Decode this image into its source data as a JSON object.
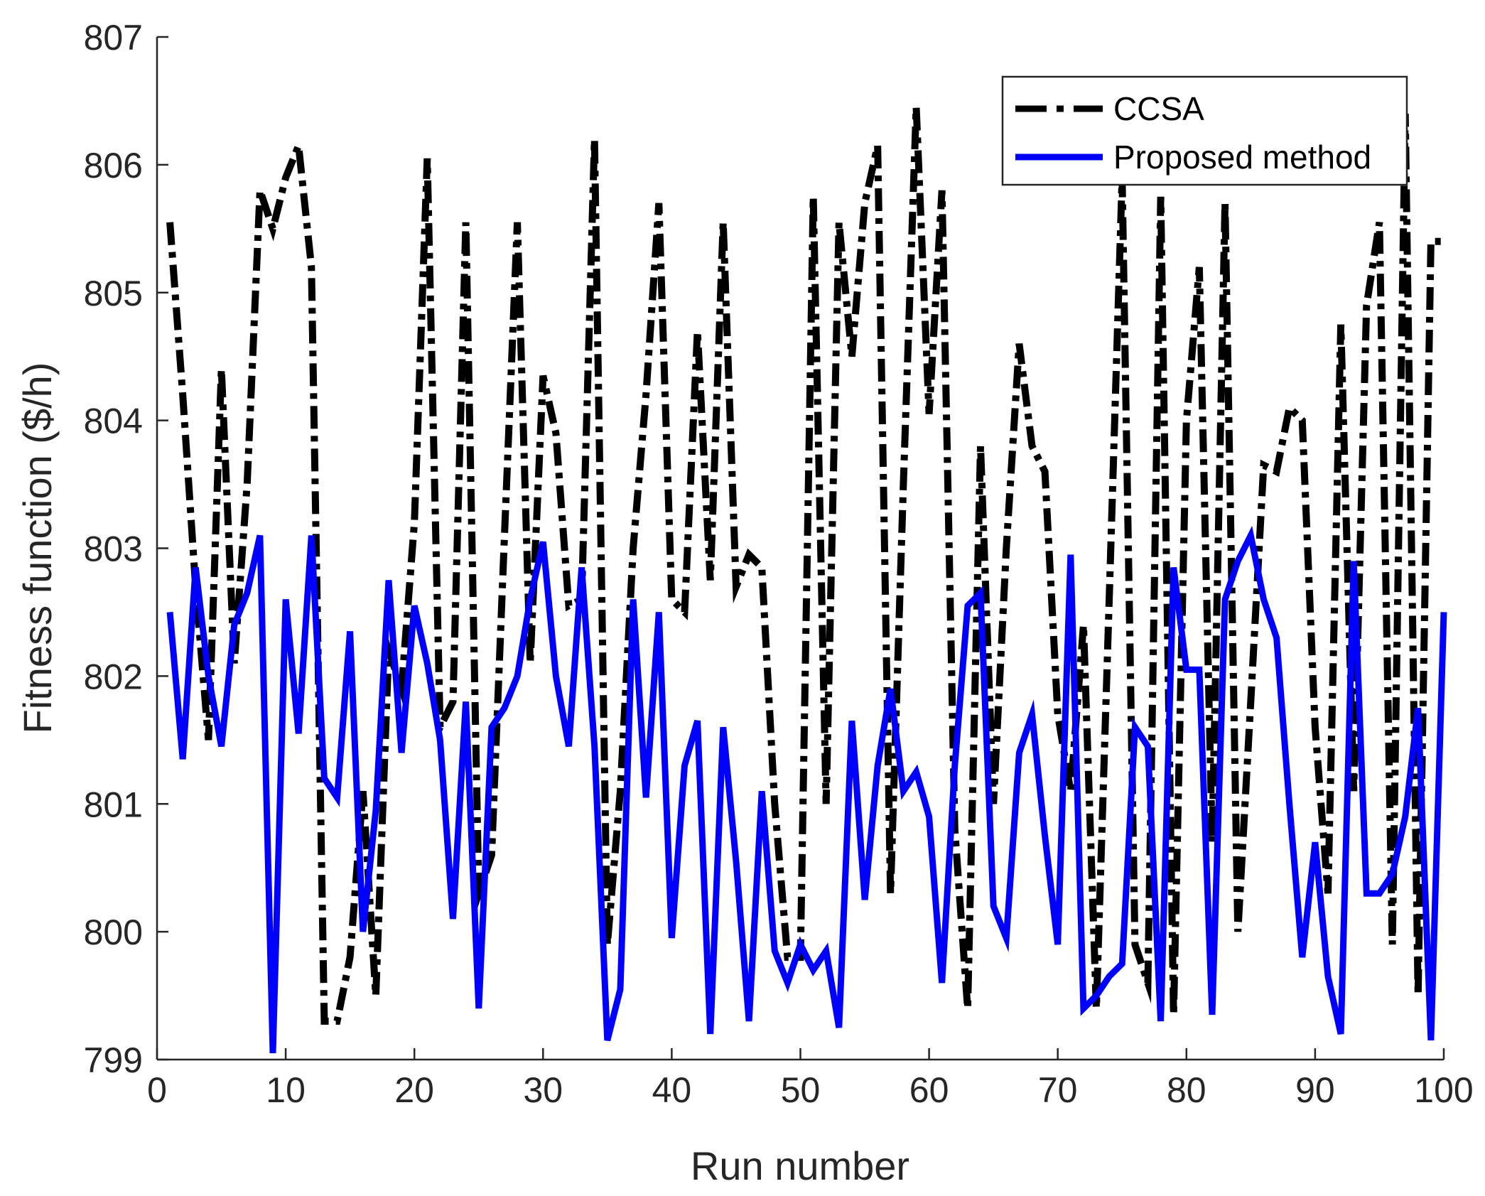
{
  "chart_data": {
    "type": "line",
    "title": "",
    "xlabel": "Run number",
    "ylabel": "Fitness function ($/h)",
    "xlim": [
      0,
      100
    ],
    "ylim": [
      799,
      807
    ],
    "xticks": [
      "0",
      "10",
      "20",
      "30",
      "40",
      "50",
      "60",
      "70",
      "80",
      "90",
      "100"
    ],
    "yticks": [
      "799",
      "800",
      "801",
      "802",
      "803",
      "804",
      "805",
      "806",
      "807"
    ],
    "legend_position": "top-right",
    "x": [
      1,
      2,
      3,
      4,
      5,
      6,
      7,
      8,
      9,
      10,
      11,
      12,
      13,
      14,
      15,
      16,
      17,
      18,
      19,
      20,
      21,
      22,
      23,
      24,
      25,
      26,
      27,
      28,
      29,
      30,
      31,
      32,
      33,
      34,
      35,
      36,
      37,
      38,
      39,
      40,
      41,
      42,
      43,
      44,
      45,
      46,
      47,
      48,
      49,
      50,
      51,
      52,
      53,
      54,
      55,
      56,
      57,
      58,
      59,
      60,
      61,
      62,
      63,
      64,
      65,
      66,
      67,
      68,
      69,
      70,
      71,
      72,
      73,
      74,
      75,
      76,
      77,
      78,
      79,
      80,
      81,
      82,
      83,
      84,
      85,
      86,
      87,
      88,
      89,
      90,
      91,
      92,
      93,
      94,
      95,
      96,
      97,
      98,
      99,
      100
    ],
    "series": [
      {
        "name": "CCSA",
        "color": "#000000",
        "style": "dash-dot",
        "values": [
          805.55,
          804.2,
          802.7,
          801.5,
          804.4,
          802.1,
          803.5,
          805.8,
          805.5,
          805.9,
          806.15,
          805.2,
          799.3,
          799.3,
          799.8,
          801.1,
          799.5,
          802.2,
          801.9,
          803.2,
          806.05,
          801.6,
          801.8,
          805.55,
          800.3,
          800.6,
          803.1,
          805.55,
          802.1,
          804.35,
          803.9,
          802.55,
          802.6,
          806.2,
          799.9,
          801.1,
          803.0,
          804.2,
          805.7,
          802.6,
          802.5,
          804.7,
          802.75,
          805.55,
          802.7,
          802.95,
          802.85,
          801.0,
          799.8,
          799.8,
          805.75,
          801.0,
          805.55,
          804.5,
          805.7,
          806.15,
          800.3,
          803.5,
          806.45,
          804.05,
          805.8,
          800.8,
          799.4,
          803.8,
          801.0,
          803.0,
          804.6,
          803.8,
          803.6,
          801.7,
          801.1,
          802.4,
          799.4,
          802.6,
          805.9,
          799.9,
          799.6,
          805.75,
          799.35,
          804.0,
          805.2,
          800.7,
          805.7,
          800.0,
          801.8,
          803.65,
          803.6,
          804.1,
          804.0,
          801.6,
          800.3,
          804.75,
          801.1,
          804.9,
          805.55,
          799.9,
          806.4,
          799.5,
          805.4,
          805.4
        ]
      },
      {
        "name": "Proposed method",
        "color": "#0000ff",
        "style": "solid",
        "values": [
          802.5,
          801.35,
          802.85,
          802.0,
          801.45,
          802.4,
          802.65,
          803.1,
          799.05,
          802.6,
          801.55,
          803.1,
          801.2,
          801.05,
          802.35,
          800.0,
          800.95,
          802.75,
          801.4,
          802.55,
          802.1,
          801.5,
          800.1,
          801.8,
          799.4,
          801.6,
          801.75,
          802.0,
          802.6,
          803.05,
          802.0,
          801.45,
          802.85,
          801.45,
          799.15,
          799.55,
          802.6,
          801.05,
          802.5,
          799.95,
          801.3,
          801.65,
          799.2,
          801.6,
          800.55,
          799.3,
          801.1,
          799.85,
          799.6,
          799.9,
          799.7,
          799.85,
          799.25,
          801.65,
          800.25,
          801.3,
          801.9,
          801.1,
          801.25,
          800.9,
          799.6,
          801.3,
          802.55,
          802.65,
          800.2,
          799.95,
          801.4,
          801.7,
          800.75,
          799.9,
          802.95,
          799.4,
          799.5,
          799.65,
          799.75,
          801.6,
          801.45,
          799.3,
          802.85,
          802.05,
          802.05,
          799.35,
          802.6,
          802.9,
          803.1,
          802.6,
          802.3,
          801.0,
          799.8,
          800.7,
          799.65,
          799.2,
          802.9,
          800.3,
          800.3,
          800.45,
          800.9,
          801.75,
          799.15,
          802.5
        ]
      }
    ]
  }
}
